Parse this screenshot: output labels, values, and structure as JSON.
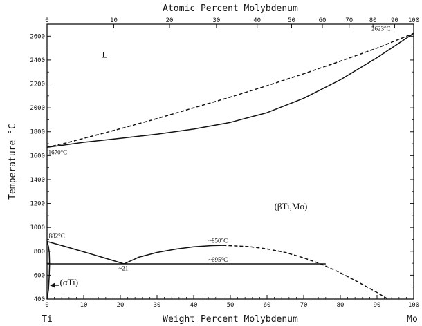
{
  "chart_data": {
    "type": "line",
    "title": "",
    "xlabel": "Weight Percent Molybdenum",
    "x2label": "Atomic Percent Molybdenum",
    "ylabel": "Temperature °C",
    "xlim": [
      0,
      100
    ],
    "ylim": [
      400,
      2700
    ],
    "x_ticks": [
      0,
      10,
      20,
      30,
      40,
      50,
      60,
      70,
      80,
      90,
      100
    ],
    "x_tick_labels": [
      "0",
      "10",
      "20",
      "30",
      "40",
      "50",
      "60",
      "70",
      "80",
      "90",
      "100"
    ],
    "y_ticks": [
      400,
      600,
      800,
      1000,
      1200,
      1400,
      1600,
      1800,
      2000,
      2200,
      2400,
      2600
    ],
    "y_tick_labels": [
      "400",
      "600",
      "800",
      "1000",
      "1200",
      "1400",
      "1600",
      "1800",
      "2000",
      "2200",
      "2400",
      "2600"
    ],
    "x2_ticks": [
      0,
      10,
      20,
      30,
      40,
      50,
      60,
      70,
      80,
      90,
      100
    ],
    "x2_tick_labels": [
      "0",
      "10",
      "20",
      "30",
      "40",
      "50",
      "60",
      "70",
      "80",
      "90",
      "100"
    ],
    "x2_ticks_wt": [
      0,
      18.2,
      33.4,
      46.2,
      57.3,
      66.7,
      75.1,
      82.4,
      88.9,
      94.8,
      100
    ],
    "endpoint_labels": {
      "left": "Ti",
      "right": "Mo"
    },
    "grid": false,
    "series": [
      {
        "style": "solid",
        "x": [
          0,
          5,
          10,
          20,
          30,
          40,
          50,
          60,
          70,
          80,
          90,
          100
        ],
        "y": [
          1670,
          1690,
          1712,
          1745,
          1780,
          1822,
          1878,
          1960,
          2080,
          2235,
          2420,
          2623
        ]
      },
      {
        "style": "dashed",
        "x": [
          0,
          5,
          10,
          20,
          30,
          40,
          50,
          60,
          70,
          80,
          90,
          100
        ],
        "y": [
          1670,
          1705,
          1745,
          1825,
          1910,
          2000,
          2090,
          2185,
          2285,
          2390,
          2500,
          2623
        ]
      },
      {
        "style": "solid",
        "x": [
          0,
          5,
          10,
          15,
          21
        ],
        "y": [
          882,
          840,
          795,
          750,
          695
        ]
      },
      {
        "style": "solid",
        "x": [
          21,
          25,
          30,
          35,
          40,
          45,
          48
        ],
        "y": [
          695,
          750,
          790,
          818,
          838,
          848,
          850
        ]
      },
      {
        "style": "dashed",
        "x": [
          48,
          55,
          60,
          65,
          70,
          75,
          80,
          85,
          90,
          93
        ],
        "y": [
          850,
          840,
          820,
          790,
          745,
          690,
          620,
          540,
          455,
          400
        ]
      },
      {
        "style": "solid",
        "x": [
          0,
          76
        ],
        "y": [
          695,
          695
        ]
      },
      {
        "style": "solid",
        "x": [
          0,
          0.4,
          0.6,
          0.7,
          0.6,
          0.4,
          0
        ],
        "y": [
          882,
          840,
          790,
          695,
          600,
          480,
          400
        ]
      }
    ],
    "annotations": [
      {
        "text": "1670°C",
        "x": 0.3,
        "y": 1610
      },
      {
        "text": "2623°C",
        "x": 88.5,
        "y": 2645
      },
      {
        "text": "882°C",
        "x": 0.5,
        "y": 910
      },
      {
        "text": "~850°C",
        "x": 44,
        "y": 870
      },
      {
        "text": "~695°C",
        "x": 44,
        "y": 712
      },
      {
        "text": "~21",
        "x": 19.5,
        "y": 640
      },
      {
        "text": "L",
        "x": 15,
        "y": 2420
      },
      {
        "text": "(βTi,Mo)",
        "x": 62,
        "y": 1150
      },
      {
        "text": "(αTi)",
        "x": 3.5,
        "y": 515
      }
    ]
  }
}
